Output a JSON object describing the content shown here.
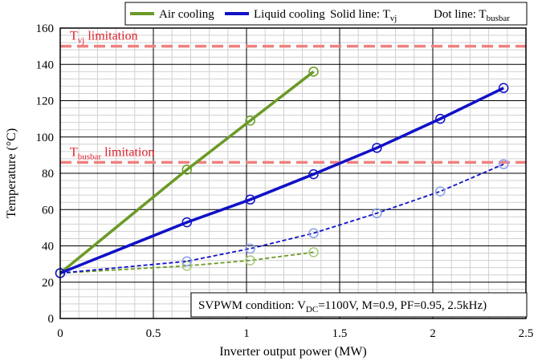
{
  "chart_data": {
    "type": "line",
    "xlabel": "Inverter output power (MW)",
    "ylabel": "Temperature (°C)",
    "xlim": [
      0,
      2.5
    ],
    "ylim": [
      0,
      160
    ],
    "x_ticks": [
      "0",
      "0.5",
      "1",
      "1.5",
      "2",
      "2.5"
    ],
    "y_ticks": [
      "0",
      "20",
      "40",
      "60",
      "80",
      "100",
      "120",
      "140",
      "160"
    ],
    "x_tick_values": [
      0,
      0.5,
      1,
      1.5,
      2,
      2.5
    ],
    "y_tick_values": [
      0,
      20,
      40,
      60,
      80,
      100,
      120,
      140,
      160
    ],
    "grid": true,
    "legend": {
      "placement": "top",
      "air_label": "Air cooling",
      "liquid_label": "Liquid cooling",
      "solid_label": "Solid line: T",
      "solid_sub": "vj",
      "dot_label": "Dot line: T",
      "dot_sub": "busbar"
    },
    "limits": [
      {
        "pre": "T",
        "sub": "vj",
        "post": " limitation",
        "y": 150,
        "color": "#f08080"
      },
      {
        "pre": "T",
        "sub": "busbar",
        "post": " limitation",
        "y": 86,
        "color": "#f08080"
      }
    ],
    "condition": {
      "pre": "SVPWM condition: V",
      "sub": "DC",
      "post": "=1100V, M=0.9, PF=0.95, 2.5kHz)"
    },
    "series": [
      {
        "cooling": "air",
        "style": "solid",
        "color": "#6a9a25",
        "x": [
          0,
          0.68,
          1.02,
          1.36
        ],
        "y": [
          25,
          82,
          109,
          136
        ]
      },
      {
        "cooling": "air",
        "style": "dotted",
        "color": "#6a9a25",
        "x": [
          0,
          0.68,
          1.02,
          1.36
        ],
        "y": [
          25,
          29,
          32,
          36.5
        ]
      },
      {
        "cooling": "liquid",
        "style": "solid",
        "color": "#1010c8",
        "x": [
          0,
          0.68,
          1.02,
          1.36,
          1.7,
          2.04,
          2.38
        ],
        "y": [
          25,
          53,
          65.5,
          79.5,
          94,
          110,
          127
        ]
      },
      {
        "cooling": "liquid",
        "style": "dotted",
        "color": "#1010c8",
        "x": [
          0,
          0.68,
          1.02,
          1.36,
          1.7,
          2.04,
          2.38
        ],
        "y": [
          25,
          31.5,
          38.5,
          47,
          58,
          70,
          85
        ]
      }
    ]
  }
}
